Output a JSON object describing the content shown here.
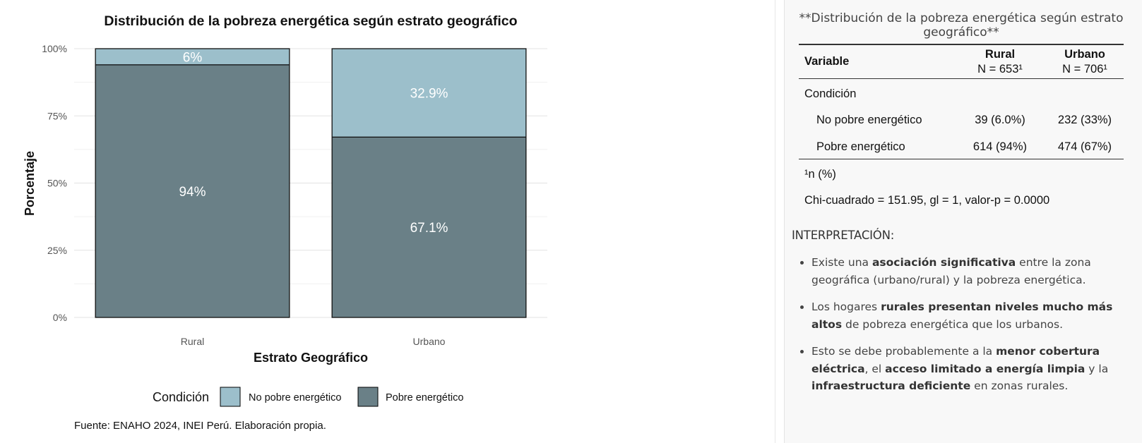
{
  "chart_data": {
    "type": "bar",
    "stacked": true,
    "title": "Distribución de la pobreza energética según estrato geográfico",
    "xlabel": "Estrato Geográfico",
    "ylabel": "Porcentaje",
    "ylim": [
      0,
      100
    ],
    "y_ticks": [
      "0%",
      "25%",
      "50%",
      "75%",
      "100%"
    ],
    "categories": [
      "Rural",
      "Urbano"
    ],
    "series": [
      {
        "name": "Pobre energético",
        "values": [
          94.0,
          67.1
        ],
        "labels": [
          "94%",
          "67.1%"
        ],
        "color": "#6a8087"
      },
      {
        "name": "No pobre energético",
        "values": [
          6.0,
          32.9
        ],
        "labels": [
          "6%",
          "32.9%"
        ],
        "color": "#9cbfcb"
      }
    ],
    "legend_title": "Condición",
    "legend_items": [
      "No pobre energético",
      "Pobre energético"
    ],
    "legend_colors": [
      "#9cbfcb",
      "#6a8087"
    ],
    "legend_position": "bottom",
    "caption": "Fuente: ENAHO 2024, INEI Perú. Elaboración propia.",
    "grid": true
  },
  "table": {
    "title": "**Distribución de la pobreza energética según estrato geográfico**",
    "header": {
      "variable": "Variable",
      "rural": "Rural",
      "rural_n": "N = 653¹",
      "urbano": "Urbano",
      "urbano_n": "N = 706¹"
    },
    "group_label": "Condición",
    "rows": [
      {
        "label": "No pobre energético",
        "rural": "39 (6.0%)",
        "urbano": "232 (33%)"
      },
      {
        "label": "Pobre energético",
        "rural": "614 (94%)",
        "urbano": "474 (67%)"
      }
    ],
    "footnote": "¹n (%)",
    "chi_line": "Chi-cuadrado = 151.95, gl = 1, valor-p = 0.0000"
  },
  "interpretation": {
    "title": "INTERPRETACIÓN:",
    "bullets": [
      {
        "parts": [
          {
            "text": "Existe una ",
            "bold": false
          },
          {
            "text": "asociación significativa",
            "bold": true
          },
          {
            "text": " entre la zona geográfica (urbano/rural) y la pobreza energética.",
            "bold": false
          }
        ]
      },
      {
        "parts": [
          {
            "text": "Los hogares ",
            "bold": false
          },
          {
            "text": "rurales presentan niveles mucho más altos",
            "bold": true
          },
          {
            "text": " de pobreza energética que los urbanos.",
            "bold": false
          }
        ]
      },
      {
        "parts": [
          {
            "text": "Esto se debe probablemente a la ",
            "bold": false
          },
          {
            "text": "menor cobertura eléctrica",
            "bold": true
          },
          {
            "text": ", el ",
            "bold": false
          },
          {
            "text": "acceso limitado a energía limpia",
            "bold": true
          },
          {
            "text": " y la ",
            "bold": false
          },
          {
            "text": "infraestructura deficiente",
            "bold": true
          },
          {
            "text": " en zonas rurales.",
            "bold": false
          }
        ]
      }
    ]
  }
}
